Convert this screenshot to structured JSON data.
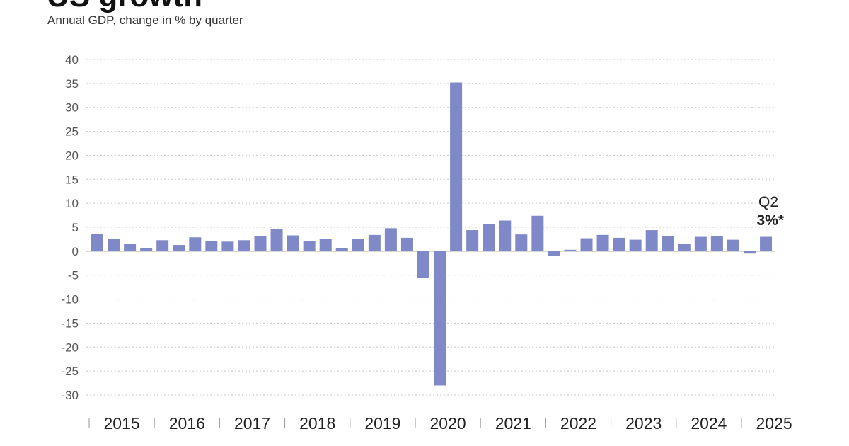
{
  "title": "US growth",
  "subtitle": "Annual GDP, change in % by quarter",
  "annotation": {
    "line1": "Q2",
    "line2": "3%*"
  },
  "colors": {
    "bar": "#8089c7",
    "grid": "#c8c8c8",
    "zero": "#999999"
  },
  "chart_data": {
    "type": "bar",
    "title": "US growth",
    "subtitle": "Annual GDP, change in % by quarter",
    "xlabel": "",
    "ylabel": "",
    "ylim": [
      -30,
      40
    ],
    "yticks": [
      40,
      35,
      30,
      25,
      20,
      15,
      10,
      5,
      0,
      -5,
      -10,
      -15,
      -20,
      -25,
      -30
    ],
    "grid": true,
    "year_labels": [
      "2015",
      "2016",
      "2017",
      "2018",
      "2019",
      "2020",
      "2021",
      "2022",
      "2023",
      "2024",
      "2025"
    ],
    "categories": [
      "2015 Q1",
      "2015 Q2",
      "2015 Q3",
      "2015 Q4",
      "2016 Q1",
      "2016 Q2",
      "2016 Q3",
      "2016 Q4",
      "2017 Q1",
      "2017 Q2",
      "2017 Q3",
      "2017 Q4",
      "2018 Q1",
      "2018 Q2",
      "2018 Q3",
      "2018 Q4",
      "2019 Q1",
      "2019 Q2",
      "2019 Q3",
      "2019 Q4",
      "2020 Q1",
      "2020 Q2",
      "2020 Q3",
      "2020 Q4",
      "2021 Q1",
      "2021 Q2",
      "2021 Q3",
      "2021 Q4",
      "2022 Q1",
      "2022 Q2",
      "2022 Q3",
      "2022 Q4",
      "2023 Q1",
      "2023 Q2",
      "2023 Q3",
      "2023 Q4",
      "2024 Q1",
      "2024 Q2",
      "2024 Q3",
      "2024 Q4",
      "2025 Q1",
      "2025 Q2"
    ],
    "values": [
      3.6,
      2.5,
      1.6,
      0.7,
      2.3,
      1.3,
      2.9,
      2.2,
      2.0,
      2.3,
      3.2,
      4.6,
      3.3,
      2.1,
      2.5,
      0.6,
      2.5,
      3.4,
      4.8,
      2.8,
      -5.5,
      -28.0,
      35.2,
      4.4,
      5.6,
      6.4,
      3.5,
      7.4,
      -1.0,
      0.3,
      2.7,
      3.4,
      2.8,
      2.4,
      4.4,
      3.2,
      1.6,
      3.0,
      3.1,
      2.4,
      -0.5,
      3.0
    ]
  }
}
